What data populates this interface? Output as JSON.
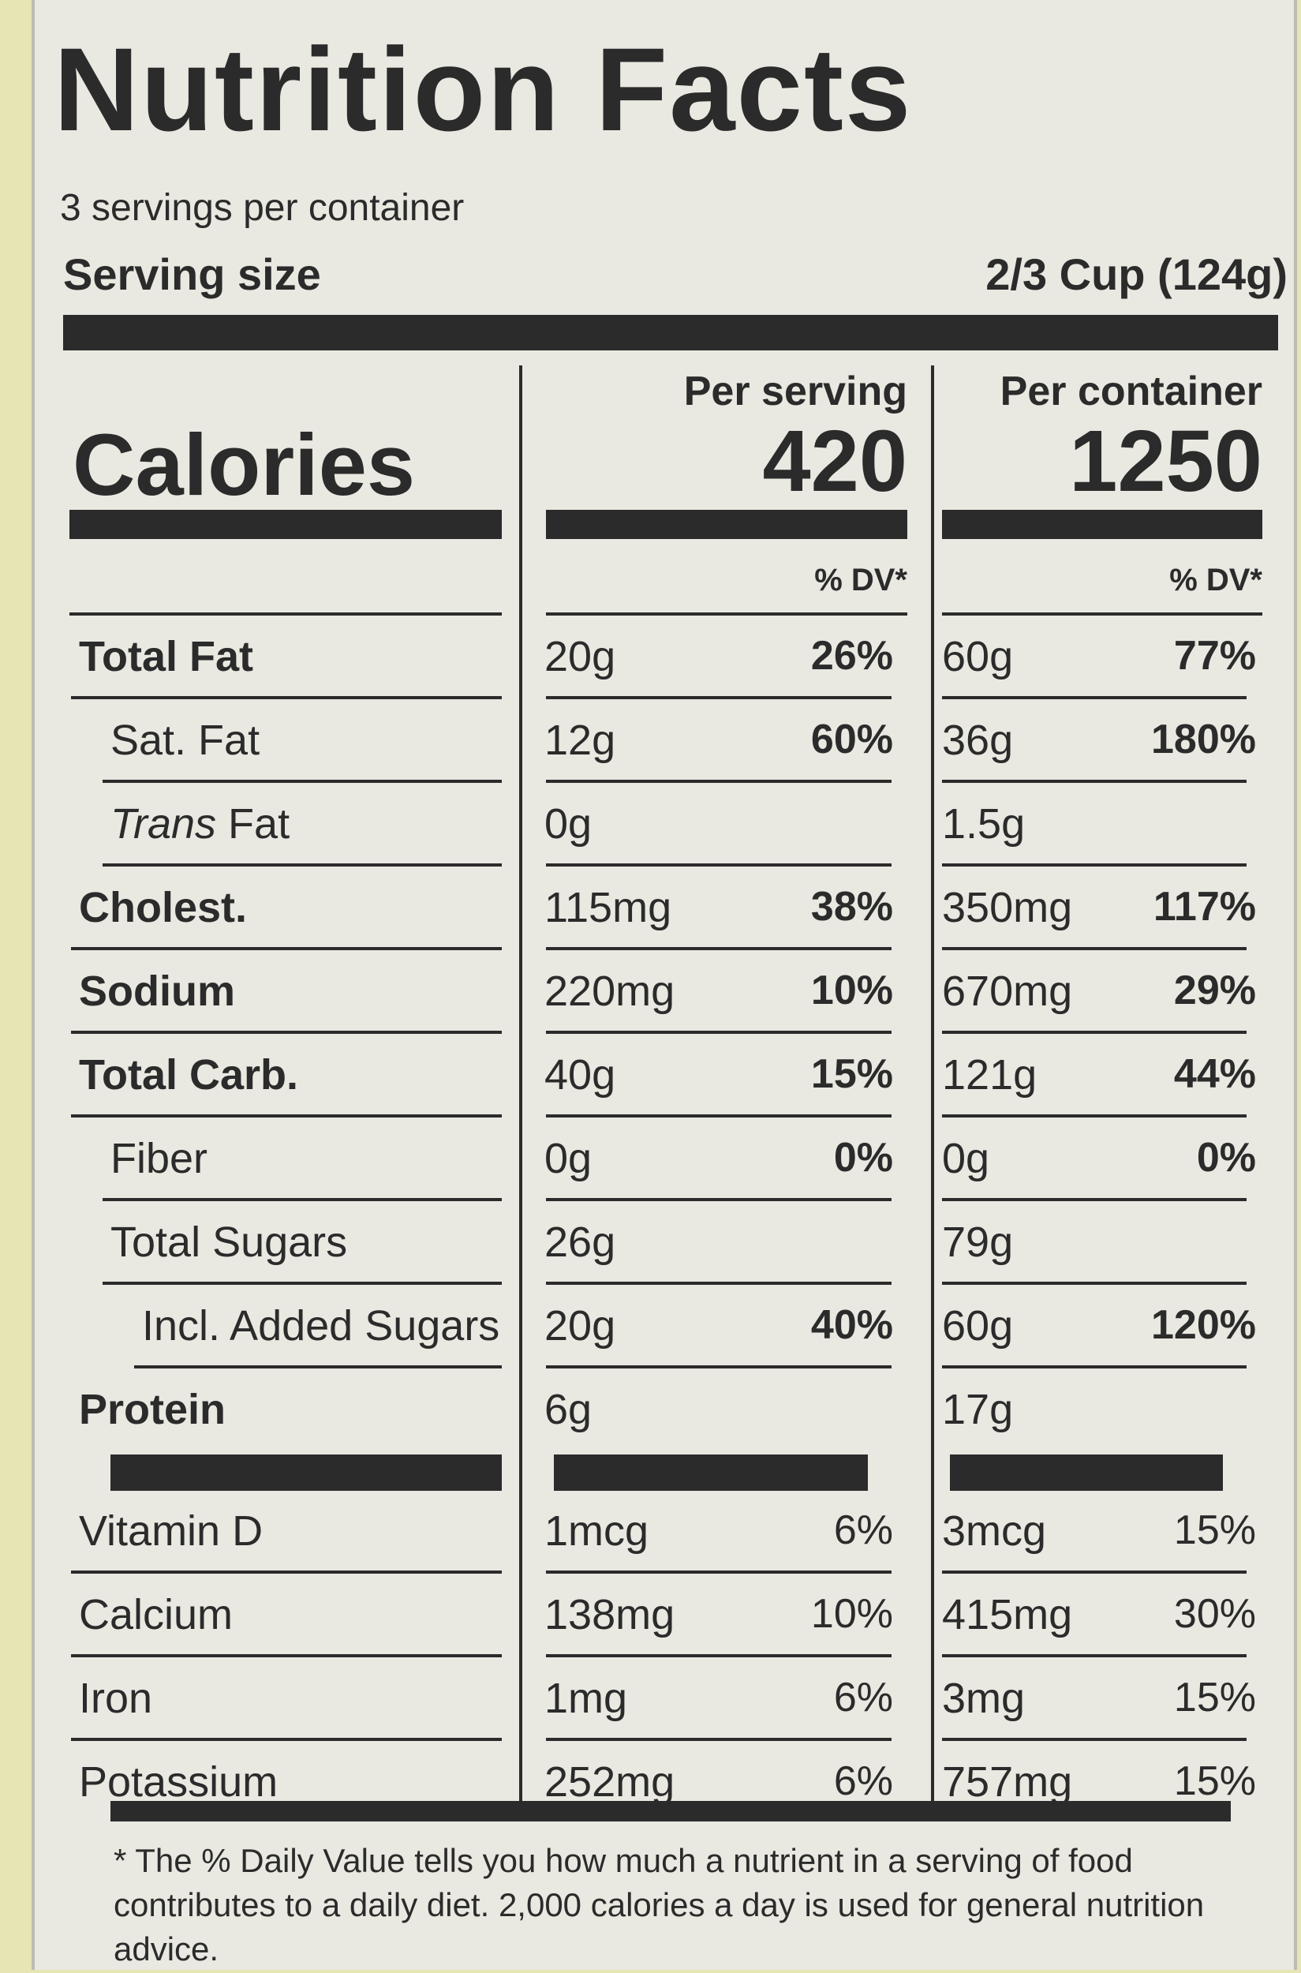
{
  "title": "Nutrition Facts",
  "servings": "3 servings per container",
  "serving_size_label": "Serving size",
  "serving_size": "2/3 Cup (124g)",
  "calories_label": "Calories",
  "columns": [
    {
      "header": "Per serving",
      "calories": "420",
      "dv_header": "% DV*"
    },
    {
      "header": "Per container",
      "calories": "1250",
      "dv_header": "% DV*"
    }
  ],
  "rows": [
    {
      "label": "Total Fat",
      "bold": true,
      "indent": 0,
      "values": [
        [
          "20g",
          "26%"
        ],
        [
          "60g",
          "77%"
        ]
      ]
    },
    {
      "label": "Sat. Fat",
      "bold": false,
      "indent": 1,
      "values": [
        [
          "12g",
          "60%"
        ],
        [
          "36g",
          "180%"
        ]
      ]
    },
    {
      "label_italic": "Trans",
      "label": "Fat",
      "bold": false,
      "indent": 1,
      "values": [
        [
          "0g",
          null
        ],
        [
          "1.5g",
          null
        ]
      ]
    },
    {
      "label": "Cholest.",
      "bold": true,
      "indent": 0,
      "values": [
        [
          "115mg",
          "38%"
        ],
        [
          "350mg",
          "117%"
        ]
      ]
    },
    {
      "label": "Sodium",
      "bold": true,
      "indent": 0,
      "values": [
        [
          "220mg",
          "10%"
        ],
        [
          "670mg",
          "29%"
        ]
      ]
    },
    {
      "label": "Total Carb.",
      "bold": true,
      "indent": 0,
      "values": [
        [
          "40g",
          "15%"
        ],
        [
          "121g",
          "44%"
        ]
      ]
    },
    {
      "label": "Fiber",
      "bold": false,
      "indent": 1,
      "values": [
        [
          "0g",
          "0%"
        ],
        [
          "0g",
          "0%"
        ]
      ]
    },
    {
      "label": "Total Sugars",
      "bold": false,
      "indent": 1,
      "values": [
        [
          "26g",
          null
        ],
        [
          "79g",
          null
        ]
      ]
    },
    {
      "label": "Incl. Added Sugars",
      "bold": false,
      "indent": 2,
      "values": [
        [
          "20g",
          "40%"
        ],
        [
          "60g",
          "120%"
        ]
      ]
    },
    {
      "label": "Protein",
      "bold": true,
      "indent": 0,
      "values": [
        [
          "6g",
          null
        ],
        [
          "17g",
          null
        ]
      ]
    }
  ],
  "vitamins": [
    {
      "label": "Vitamin D",
      "values": [
        [
          "1mcg",
          "6%"
        ],
        [
          "3mcg",
          "15%"
        ]
      ]
    },
    {
      "label": "Calcium",
      "values": [
        [
          "138mg",
          "10%"
        ],
        [
          "415mg",
          "30%"
        ]
      ]
    },
    {
      "label": "Iron",
      "values": [
        [
          "1mg",
          "6%"
        ],
        [
          "3mg",
          "15%"
        ]
      ]
    },
    {
      "label": "Potassium",
      "values": [
        [
          "252mg",
          "6%"
        ],
        [
          "757mg",
          "15%"
        ]
      ]
    }
  ],
  "footnote": "* The % Daily Value tells you how much a nutrient in a serving of food contributes to a daily diet. 2,000 calories a day is used for general nutrition advice."
}
